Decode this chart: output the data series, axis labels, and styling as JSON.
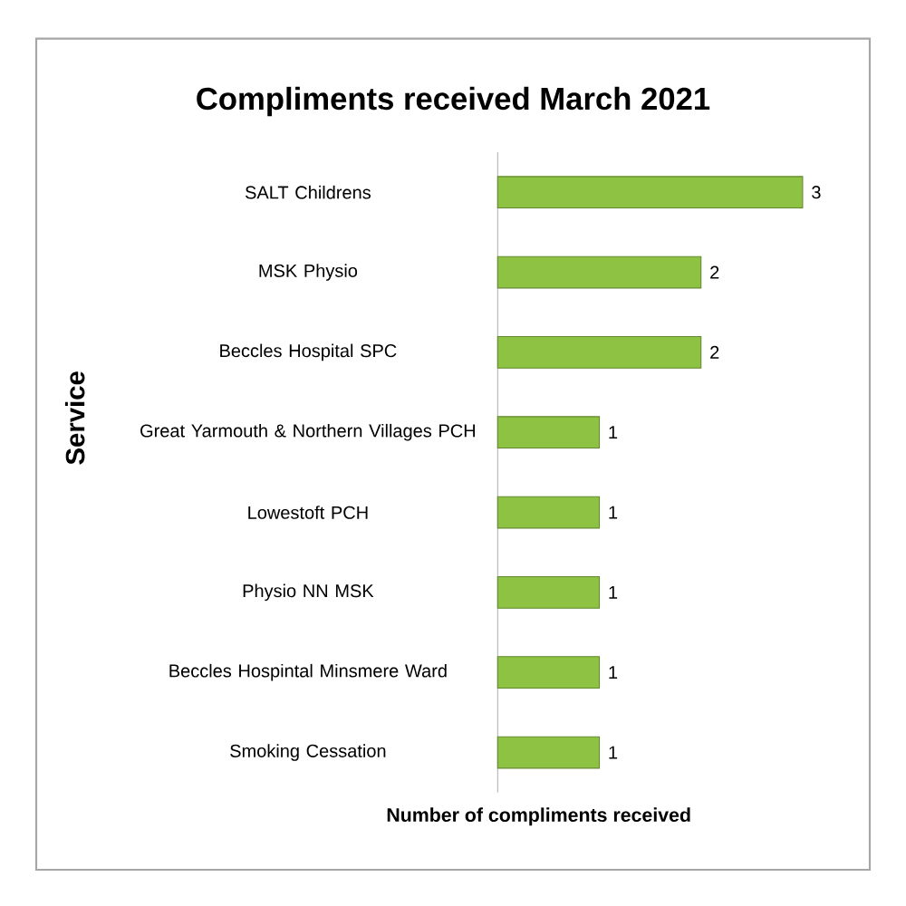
{
  "chart_data": {
    "type": "bar",
    "orientation": "horizontal",
    "title": "Compliments received March 2021",
    "xlabel": "Number of compliments received",
    "ylabel": "Service",
    "categories": [
      "SALT Childrens",
      "MSK Physio",
      "Beccles Hospital SPC",
      "Great Yarmouth & Northern Villages PCH",
      "Lowestoft PCH",
      "Physio NN MSK",
      "Beccles Hospintal Minsmere Ward",
      "Smoking Cessation"
    ],
    "values": [
      3,
      2,
      2,
      1,
      1,
      1,
      1,
      1
    ],
    "color": "#8dc243",
    "data_labels": true,
    "tick_labels": "y"
  }
}
